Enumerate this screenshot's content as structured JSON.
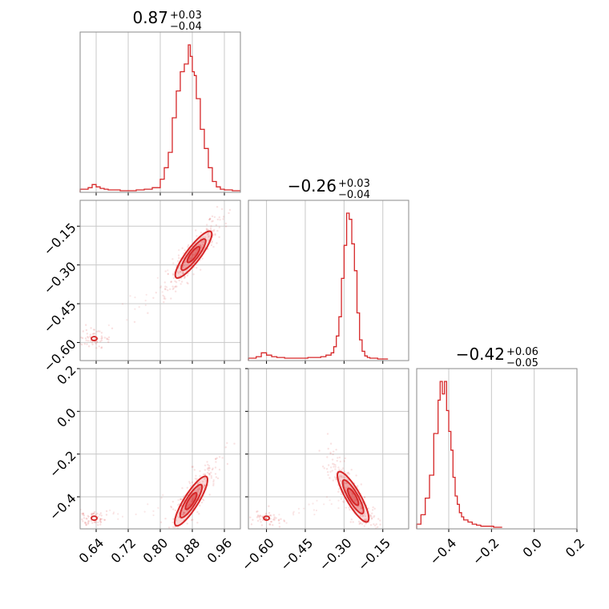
{
  "chart_data": {
    "type": "corner",
    "color": "#d62728",
    "parameters": [
      {
        "range": [
          0.6,
          1.0
        ],
        "ticks": [
          0.64,
          0.72,
          0.8,
          0.88,
          0.96
        ],
        "tick_labels": [
          "0.64",
          "0.72",
          "0.80",
          "0.88",
          "0.96"
        ],
        "title": {
          "median": "0.87",
          "plus": "+0.03",
          "minus": "−0.04"
        }
      },
      {
        "range": [
          -0.67,
          -0.05
        ],
        "ticks": [
          -0.6,
          -0.45,
          -0.3,
          -0.15
        ],
        "tick_labels": [
          "−0.60",
          "−0.45",
          "−0.30",
          "−0.15"
        ],
        "title": {
          "median": "−0.26",
          "plus": "+0.03",
          "minus": "−0.04"
        }
      },
      {
        "range": [
          -0.55,
          0.2
        ],
        "ticks": [
          -0.4,
          -0.2,
          0.0,
          0.2
        ],
        "tick_labels": [
          "−0.4",
          "−0.2",
          "0.0",
          "0.2"
        ],
        "title": {
          "median": "−0.42",
          "plus": "+0.06",
          "minus": "−0.05"
        }
      }
    ],
    "marginals": [
      {
        "bin_edges": [
          0.6,
          0.62,
          0.63,
          0.64,
          0.65,
          0.66,
          0.67,
          0.68,
          0.7,
          0.72,
          0.74,
          0.76,
          0.78,
          0.8,
          0.81,
          0.82,
          0.83,
          0.84,
          0.85,
          0.86,
          0.87,
          0.875,
          0.88,
          0.885,
          0.89,
          0.9,
          0.91,
          0.92,
          0.93,
          0.94,
          0.95,
          0.96,
          0.98,
          1.0
        ],
        "counts": [
          2,
          4,
          8,
          5,
          3,
          2,
          1,
          1,
          0,
          0,
          1,
          2,
          4,
          15,
          30,
          50,
          95,
          130,
          155,
          165,
          190,
          175,
          155,
          150,
          120,
          80,
          55,
          30,
          12,
          5,
          2,
          1,
          0
        ]
      },
      {
        "bin_edges": [
          -0.67,
          -0.64,
          -0.62,
          -0.6,
          -0.58,
          -0.56,
          -0.53,
          -0.5,
          -0.47,
          -0.44,
          -0.41,
          -0.39,
          -0.37,
          -0.35,
          -0.34,
          -0.33,
          -0.32,
          -0.31,
          -0.3,
          -0.29,
          -0.28,
          -0.27,
          -0.26,
          -0.25,
          -0.24,
          -0.23,
          -0.22,
          -0.21,
          -0.2,
          -0.19,
          -0.17,
          -0.15,
          -0.13
        ],
        "counts": [
          1,
          3,
          8,
          5,
          3,
          2,
          1,
          1,
          1,
          2,
          2,
          3,
          5,
          8,
          16,
          30,
          55,
          105,
          148,
          190,
          182,
          150,
          115,
          60,
          25,
          10,
          4,
          2,
          1,
          1,
          0,
          0
        ]
      },
      {
        "bin_edges": [
          -0.55,
          -0.53,
          -0.51,
          -0.49,
          -0.47,
          -0.45,
          -0.44,
          -0.43,
          -0.42,
          -0.41,
          -0.4,
          -0.39,
          -0.38,
          -0.37,
          -0.36,
          -0.35,
          -0.34,
          -0.33,
          -0.31,
          -0.29,
          -0.27,
          -0.25,
          -0.23,
          -0.21,
          -0.19,
          -0.17,
          -0.15
        ],
        "counts": [
          3,
          12,
          28,
          50,
          90,
          122,
          140,
          128,
          140,
          112,
          92,
          74,
          48,
          30,
          22,
          14,
          10,
          7,
          5,
          3,
          2,
          1,
          1,
          1,
          0,
          0
        ]
      }
    ],
    "joint_contours": [
      {
        "x_param": 0,
        "y_param": 1,
        "center": [
          0.883,
          -0.26
        ],
        "orientation_deg": 53,
        "half_axes_levels": [
          [
            0.026,
            0.006
          ],
          [
            0.05,
            0.012
          ],
          [
            0.075,
            0.018
          ]
        ]
      },
      {
        "x_param": 0,
        "y_param": 2,
        "center": [
          0.877,
          -0.42
        ],
        "orientation_deg": 58,
        "half_axes_levels": [
          [
            0.025,
            0.005
          ],
          [
            0.048,
            0.01
          ],
          [
            0.072,
            0.015
          ]
        ]
      },
      {
        "x_param": 1,
        "y_param": 2,
        "center": [
          -0.265,
          -0.4
        ],
        "orientation_deg": -60,
        "half_axes_levels": [
          [
            0.03,
            0.008
          ],
          [
            0.06,
            0.016
          ],
          [
            0.09,
            0.024
          ]
        ]
      }
    ],
    "secondary_modes": [
      {
        "x_param": 0,
        "y_param": 1,
        "center": [
          0.635,
          -0.585
        ]
      },
      {
        "x_param": 0,
        "y_param": 2,
        "center": [
          0.635,
          -0.5
        ]
      },
      {
        "x_param": 1,
        "y_param": 2,
        "center": [
          -0.6,
          -0.5
        ]
      }
    ]
  }
}
